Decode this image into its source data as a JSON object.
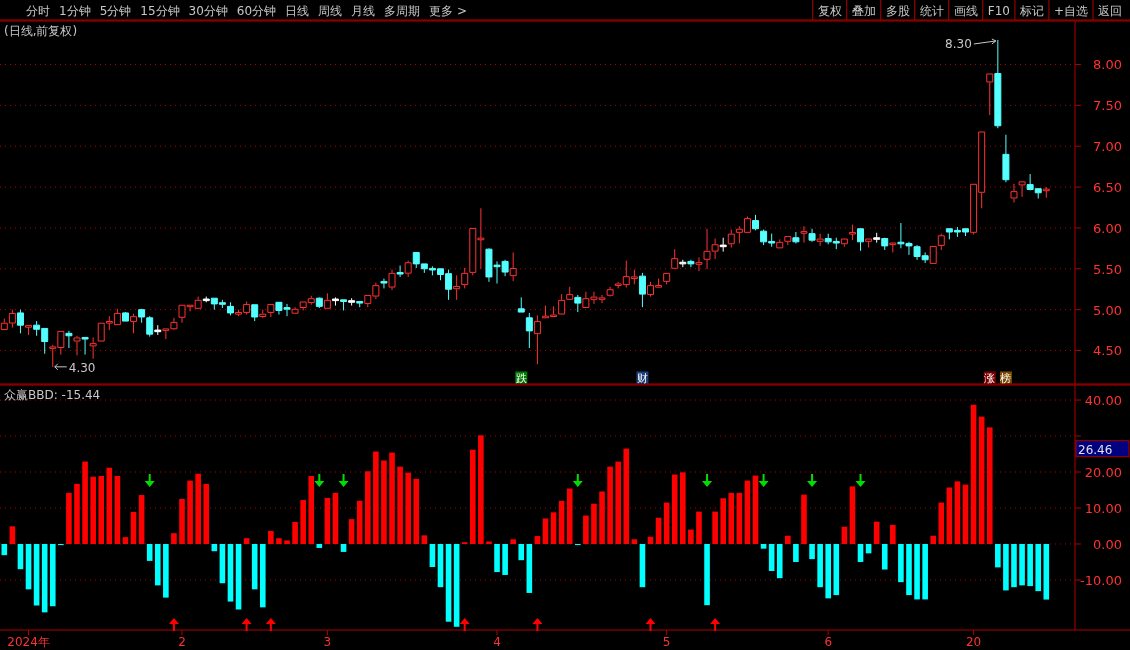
{
  "chart_data": [
    {
      "type": "other",
      "annotations": [
        "分时",
        "1分钟",
        "5分钟",
        "15分钟",
        "30分钟",
        "60分钟",
        "日线",
        "周线",
        "月线",
        "多周期",
        "更多 >",
        "复权",
        "叠加",
        "多股",
        "统计",
        "画线",
        "F10",
        "标记",
        "+自选",
        "返回"
      ]
    },
    {
      "type": "candlestick",
      "title": "(日线,前复权)",
      "tick_labels": "y",
      "grid": "y",
      "ylim": [
        4.09,
        8.52
      ],
      "yticks": [
        {
          "value": 4.5,
          "label": "4.50"
        },
        {
          "value": 5,
          "label": "5.00"
        },
        {
          "value": 5.5,
          "label": "5.50"
        },
        {
          "value": 6,
          "label": "6.00"
        },
        {
          "value": 6.5,
          "label": "6.50"
        },
        {
          "value": 7,
          "label": "7.00"
        },
        {
          "value": 7.5,
          "label": "7.50"
        },
        {
          "value": 8,
          "label": "8.00"
        }
      ],
      "categories": [
        null,
        null,
        null,
        null,
        null,
        null,
        null,
        null,
        null,
        null,
        null,
        null,
        null,
        null,
        null,
        null,
        null,
        null,
        null,
        null,
        null,
        null,
        null,
        null,
        null,
        null,
        null,
        null,
        null,
        null,
        null,
        null,
        null,
        null,
        null,
        null,
        null,
        null,
        null,
        null,
        null,
        null,
        null,
        null,
        null,
        null,
        null,
        null,
        null,
        null,
        null,
        null,
        null,
        null,
        null,
        null,
        null,
        null,
        null,
        null,
        null,
        null,
        null,
        null,
        null,
        null,
        null,
        null,
        null,
        null,
        null,
        null,
        null,
        null,
        null,
        null,
        null,
        null,
        null,
        null,
        null,
        null,
        null,
        null,
        null,
        null,
        null,
        null,
        null,
        null,
        null,
        null,
        null,
        null,
        null,
        null,
        null,
        null,
        null,
        null,
        null,
        null,
        null,
        null,
        null,
        null,
        null,
        null,
        null,
        null,
        null,
        null,
        null,
        null,
        null,
        null,
        null,
        null,
        null,
        null,
        null,
        null,
        null,
        null,
        null,
        null,
        null,
        null,
        null,
        null
      ],
      "ohlc": [
        [
          4.75,
          4.89,
          4.75,
          4.84
        ],
        [
          4.83,
          5.0,
          4.78,
          4.96
        ],
        [
          4.96,
          5.0,
          4.71,
          4.81
        ],
        [
          4.79,
          4.8,
          4.69,
          4.8
        ],
        [
          4.81,
          4.86,
          4.68,
          4.76
        ],
        [
          4.77,
          4.77,
          4.46,
          4.61
        ],
        [
          4.52,
          4.57,
          4.3,
          4.55
        ],
        [
          4.53,
          4.74,
          4.45,
          4.74
        ],
        [
          4.71,
          4.74,
          4.53,
          4.68
        ],
        [
          4.61,
          4.68,
          4.44,
          4.66
        ],
        [
          4.66,
          4.66,
          4.45,
          4.64
        ],
        [
          4.55,
          4.66,
          4.4,
          4.59
        ],
        [
          4.61,
          4.84,
          4.61,
          4.84
        ],
        [
          4.84,
          4.92,
          4.75,
          4.85
        ],
        [
          4.81,
          5.01,
          4.81,
          4.96
        ],
        [
          4.96,
          4.97,
          4.86,
          4.86
        ],
        [
          4.85,
          4.95,
          4.71,
          4.92
        ],
        [
          5.0,
          5.01,
          4.84,
          4.91
        ],
        [
          4.9,
          4.92,
          4.67,
          4.7
        ],
        [
          4.74,
          4.81,
          4.69,
          4.74
        ],
        [
          4.74,
          4.77,
          4.64,
          4.77
        ],
        [
          4.76,
          4.9,
          4.75,
          4.85
        ],
        [
          4.9,
          5.06,
          4.84,
          5.06
        ],
        [
          5.03,
          5.06,
          4.98,
          5.06
        ],
        [
          5.01,
          5.16,
          5.01,
          5.12
        ],
        [
          5.12,
          5.16,
          5.09,
          5.12
        ],
        [
          5.14,
          5.14,
          5.0,
          5.07
        ],
        [
          5.08,
          5.12,
          5.02,
          5.07
        ],
        [
          5.04,
          5.09,
          4.93,
          4.96
        ],
        [
          4.95,
          5.0,
          4.92,
          4.96
        ],
        [
          4.96,
          5.1,
          4.94,
          5.07
        ],
        [
          5.06,
          5.06,
          4.86,
          4.91
        ],
        [
          4.91,
          5.0,
          4.9,
          4.95
        ],
        [
          4.96,
          5.07,
          4.91,
          5.07
        ],
        [
          5.09,
          5.09,
          4.94,
          4.99
        ],
        [
          5.02,
          5.07,
          4.92,
          5.01
        ],
        [
          4.95,
          5.03,
          4.95,
          5.01
        ],
        [
          5.02,
          5.1,
          4.99,
          5.1
        ],
        [
          5.08,
          5.17,
          5.06,
          5.14
        ],
        [
          5.14,
          5.15,
          5.02,
          5.04
        ],
        [
          5.01,
          5.2,
          5.01,
          5.12
        ],
        [
          5.12,
          5.15,
          5.05,
          5.12
        ],
        [
          5.12,
          5.12,
          4.99,
          5.1
        ],
        [
          5.1,
          5.14,
          5.05,
          5.1
        ],
        [
          5.1,
          5.1,
          5.03,
          5.08
        ],
        [
          5.07,
          5.18,
          5.03,
          5.18
        ],
        [
          5.16,
          5.33,
          5.13,
          5.3
        ],
        [
          5.34,
          5.38,
          5.26,
          5.33
        ],
        [
          5.27,
          5.49,
          5.24,
          5.45
        ],
        [
          5.45,
          5.54,
          5.4,
          5.44
        ],
        [
          5.44,
          5.6,
          5.4,
          5.58
        ],
        [
          5.7,
          5.7,
          5.51,
          5.56
        ],
        [
          5.56,
          5.56,
          5.45,
          5.5
        ],
        [
          5.5,
          5.53,
          5.42,
          5.49
        ],
        [
          5.5,
          5.5,
          5.36,
          5.43
        ],
        [
          5.44,
          5.49,
          5.12,
          5.25
        ],
        [
          5.25,
          5.42,
          5.12,
          5.29
        ],
        [
          5.3,
          5.51,
          5.26,
          5.45
        ],
        [
          5.45,
          6.0,
          5.42,
          6.0
        ],
        [
          5.86,
          6.24,
          5.5,
          5.87
        ],
        [
          5.74,
          5.75,
          5.34,
          5.4
        ],
        [
          5.54,
          5.59,
          5.32,
          5.53
        ],
        [
          5.59,
          5.61,
          5.41,
          5.46
        ],
        [
          5.41,
          5.7,
          5.35,
          5.51
        ],
        [
          5.01,
          5.15,
          4.97,
          4.97
        ],
        [
          4.9,
          4.96,
          4.53,
          4.74
        ],
        [
          4.7,
          4.93,
          4.33,
          4.86
        ],
        [
          4.9,
          5.05,
          4.9,
          4.92
        ],
        [
          4.91,
          5.04,
          4.91,
          4.94
        ],
        [
          4.94,
          5.19,
          4.94,
          5.12
        ],
        [
          5.12,
          5.28,
          5.12,
          5.19
        ],
        [
          5.15,
          5.18,
          4.97,
          5.08
        ],
        [
          5.02,
          5.22,
          5.02,
          5.14
        ],
        [
          5.12,
          5.22,
          5.07,
          5.16
        ],
        [
          5.12,
          5.18,
          5.08,
          5.15
        ],
        [
          5.17,
          5.28,
          5.16,
          5.25
        ],
        [
          5.29,
          5.34,
          5.26,
          5.32
        ],
        [
          5.3,
          5.6,
          5.27,
          5.41
        ],
        [
          5.38,
          5.49,
          5.31,
          5.4
        ],
        [
          5.41,
          5.45,
          5.03,
          5.19
        ],
        [
          5.18,
          5.34,
          5.16,
          5.3
        ],
        [
          5.28,
          5.38,
          5.28,
          5.29
        ],
        [
          5.34,
          5.45,
          5.31,
          5.45
        ],
        [
          5.5,
          5.74,
          5.5,
          5.63
        ],
        [
          5.57,
          5.61,
          5.52,
          5.57
        ],
        [
          5.59,
          5.61,
          5.52,
          5.56
        ],
        [
          5.56,
          5.64,
          5.47,
          5.57
        ],
        [
          5.61,
          5.99,
          5.5,
          5.72
        ],
        [
          5.71,
          5.87,
          5.62,
          5.8
        ],
        [
          5.78,
          5.88,
          5.71,
          5.78
        ],
        [
          5.8,
          5.98,
          5.76,
          5.93
        ],
        [
          5.94,
          6.02,
          5.81,
          5.99
        ],
        [
          5.94,
          6.14,
          5.94,
          6.12
        ],
        [
          6.09,
          6.16,
          5.97,
          5.99
        ],
        [
          5.96,
          5.98,
          5.79,
          5.83
        ],
        [
          5.83,
          5.93,
          5.77,
          5.82
        ],
        [
          5.75,
          5.86,
          5.75,
          5.83
        ],
        [
          5.83,
          5.9,
          5.79,
          5.9
        ],
        [
          5.88,
          5.95,
          5.81,
          5.83
        ],
        [
          5.94,
          6.02,
          5.82,
          5.95
        ],
        [
          5.93,
          5.99,
          5.83,
          5.85
        ],
        [
          5.83,
          5.93,
          5.78,
          5.87
        ],
        [
          5.87,
          5.93,
          5.8,
          5.83
        ],
        [
          5.83,
          5.88,
          5.74,
          5.82
        ],
        [
          5.8,
          5.87,
          5.77,
          5.87
        ],
        [
          5.93,
          6.04,
          5.85,
          5.94
        ],
        [
          5.99,
          5.99,
          5.72,
          5.83
        ],
        [
          5.83,
          5.87,
          5.76,
          5.87
        ],
        [
          5.87,
          5.94,
          5.82,
          5.87
        ],
        [
          5.87,
          5.88,
          5.73,
          5.78
        ],
        [
          5.8,
          5.81,
          5.7,
          5.81
        ],
        [
          5.82,
          6.06,
          5.75,
          5.81
        ],
        [
          5.81,
          5.83,
          5.67,
          5.78
        ],
        [
          5.77,
          5.79,
          5.61,
          5.65
        ],
        [
          5.66,
          5.7,
          5.57,
          5.61
        ],
        [
          5.56,
          5.78,
          5.56,
          5.78
        ],
        [
          5.78,
          5.93,
          5.73,
          5.91
        ],
        [
          5.99,
          5.99,
          5.86,
          5.95
        ],
        [
          5.97,
          6.01,
          5.89,
          5.95
        ],
        [
          5.99,
          5.99,
          5.9,
          5.95
        ],
        [
          5.94,
          6.54,
          5.92,
          6.54
        ],
        [
          6.43,
          7.18,
          6.24,
          7.18
        ],
        [
          7.78,
          7.89,
          7.38,
          7.89
        ],
        [
          7.89,
          8.3,
          7.22,
          7.25
        ],
        [
          6.9,
          7.14,
          6.56,
          6.59
        ],
        [
          6.36,
          6.54,
          6.31,
          6.45
        ],
        [
          6.52,
          6.57,
          6.38,
          6.57
        ],
        [
          6.53,
          6.66,
          6.46,
          6.47
        ],
        [
          6.48,
          6.48,
          6.36,
          6.43
        ],
        [
          6.46,
          6.5,
          6.37,
          6.47
        ]
      ],
      "colors": [
        "#ff3232",
        "#ff3232",
        "#54ffff",
        "#ff3232",
        "#54ffff",
        "#54ffff",
        "#ff3232",
        "#ff3232",
        "#54ffff",
        "#ff3232",
        "#54ffff",
        "#ff3232",
        "#ff3232",
        "#ff3232",
        "#ff3232",
        "#54ffff",
        "#ff3232",
        "#54ffff",
        "#54ffff",
        "#ffffff",
        "#ff3232",
        "#ff3232",
        "#ff3232",
        "#ff3232",
        "#ff3232",
        "#ffffff",
        "#54ffff",
        "#54ffff",
        "#54ffff",
        "#ff3232",
        "#ff3232",
        "#54ffff",
        "#ff3232",
        "#ff3232",
        "#54ffff",
        "#54ffff",
        "#ff3232",
        "#ff3232",
        "#ff3232",
        "#54ffff",
        "#ff3232",
        "#ffffff",
        "#54ffff",
        "#ffffff",
        "#54ffff",
        "#ff3232",
        "#ff3232",
        "#54ffff",
        "#ff3232",
        "#54ffff",
        "#ff3232",
        "#54ffff",
        "#54ffff",
        "#54ffff",
        "#54ffff",
        "#54ffff",
        "#ff3232",
        "#ff3232",
        "#ff3232",
        "#ff3232",
        "#54ffff",
        "#54ffff",
        "#54ffff",
        "#ff3232",
        "#54ffff",
        "#54ffff",
        "#ff3232",
        "#ff3232",
        "#ff3232",
        "#ff3232",
        "#ff3232",
        "#54ffff",
        "#ff3232",
        "#ff3232",
        "#ff3232",
        "#ff3232",
        "#ff3232",
        "#ff3232",
        "#ff3232",
        "#54ffff",
        "#ff3232",
        "#ff3232",
        "#ff3232",
        "#ff3232",
        "#ffffff",
        "#54ffff",
        "#ff3232",
        "#ff3232",
        "#ff3232",
        "#ffffff",
        "#ff3232",
        "#ff3232",
        "#ff3232",
        "#54ffff",
        "#54ffff",
        "#54ffff",
        "#ff3232",
        "#ff3232",
        "#54ffff",
        "#ff3232",
        "#54ffff",
        "#ff3232",
        "#54ffff",
        "#54ffff",
        "#ff3232",
        "#ff3232",
        "#54ffff",
        "#ff3232",
        "#ffffff",
        "#54ffff",
        "#ff3232",
        "#54ffff",
        "#54ffff",
        "#54ffff",
        "#54ffff",
        "#ff3232",
        "#ff3232",
        "#54ffff",
        "#54ffff",
        "#54ffff",
        "#ff3232",
        "#ff3232",
        "#ff3232",
        "#54ffff",
        "#54ffff",
        "#ff3232",
        "#ff3232",
        "#54ffff",
        "#54ffff",
        "#ff3232"
      ],
      "series": [
        {
          "type": "scatter",
          "marker": "square",
          "values": [
            null,
            null,
            null,
            null,
            null,
            null,
            null,
            null,
            null,
            null,
            null,
            null,
            null,
            null,
            null,
            null,
            null,
            null,
            null,
            null,
            null,
            null,
            null,
            null,
            null,
            null,
            null,
            null,
            null,
            null,
            null,
            null,
            null,
            null,
            null,
            null,
            null,
            null,
            null,
            null,
            null,
            null,
            null,
            null,
            null,
            null,
            null,
            null,
            null,
            null,
            null,
            null,
            null,
            null,
            null,
            null,
            null,
            null,
            null,
            null,
            null,
            null,
            null,
            null,
            4.17,
            null,
            null,
            null,
            null,
            null,
            null,
            null,
            null,
            null,
            null,
            null,
            null,
            null,
            null,
            4.17,
            null,
            null,
            null,
            null,
            null,
            null,
            null,
            null,
            null,
            null,
            null,
            null,
            null,
            null,
            null,
            null,
            null,
            null,
            null,
            null,
            null,
            null,
            null,
            null,
            null,
            null,
            null,
            null,
            null,
            null,
            null,
            null,
            null,
            null,
            null,
            null,
            null,
            null,
            null,
            null,
            null,
            null,
            4.17,
            null,
            4.17,
            null,
            null,
            null,
            null,
            null
          ],
          "colors": [
            null,
            null,
            null,
            null,
            null,
            null,
            null,
            null,
            null,
            null,
            null,
            null,
            null,
            null,
            null,
            null,
            null,
            null,
            null,
            null,
            null,
            null,
            null,
            null,
            null,
            null,
            null,
            null,
            null,
            null,
            null,
            null,
            null,
            null,
            null,
            null,
            null,
            null,
            null,
            null,
            null,
            null,
            null,
            null,
            null,
            null,
            null,
            null,
            null,
            null,
            null,
            null,
            null,
            null,
            null,
            null,
            null,
            null,
            null,
            null,
            null,
            null,
            null,
            null,
            "#007a00",
            null,
            null,
            null,
            null,
            null,
            null,
            null,
            null,
            null,
            null,
            null,
            null,
            null,
            null,
            "#1c3f7a",
            null,
            null,
            null,
            null,
            null,
            null,
            null,
            null,
            null,
            null,
            null,
            null,
            null,
            null,
            null,
            null,
            null,
            null,
            null,
            null,
            null,
            null,
            null,
            null,
            null,
            null,
            null,
            null,
            null,
            null,
            null,
            null,
            null,
            null,
            null,
            null,
            null,
            null,
            null,
            null,
            null,
            null,
            "#7a0000",
            null,
            "#7a4a00",
            null,
            null,
            null,
            null,
            null
          ],
          "value_labels": [
            null,
            null,
            null,
            null,
            null,
            null,
            null,
            null,
            null,
            null,
            null,
            null,
            null,
            null,
            null,
            null,
            null,
            null,
            null,
            null,
            null,
            null,
            null,
            null,
            null,
            null,
            null,
            null,
            null,
            null,
            null,
            null,
            null,
            null,
            null,
            null,
            null,
            null,
            null,
            null,
            null,
            null,
            null,
            null,
            null,
            null,
            null,
            null,
            null,
            null,
            null,
            null,
            null,
            null,
            null,
            null,
            null,
            null,
            null,
            null,
            null,
            null,
            null,
            null,
            "跌",
            null,
            null,
            null,
            null,
            null,
            null,
            null,
            null,
            null,
            null,
            null,
            null,
            null,
            null,
            "财",
            null,
            null,
            null,
            null,
            null,
            null,
            null,
            null,
            null,
            null,
            null,
            null,
            null,
            null,
            null,
            null,
            null,
            null,
            null,
            null,
            null,
            null,
            null,
            null,
            null,
            null,
            null,
            null,
            null,
            null,
            null,
            null,
            null,
            null,
            null,
            null,
            null,
            null,
            null,
            null,
            null,
            null,
            "涨",
            null,
            "榜",
            null,
            null,
            null,
            null,
            null
          ]
        }
      ],
      "annotations": [
        "8.30",
        "4.30"
      ]
    },
    {
      "type": "bar",
      "title": "众赢BBD: -15.44",
      "grid": "y",
      "ylim": [
        -23.9,
        43.9
      ],
      "yticks": [
        {
          "value": -10,
          "label": "-10.00"
        },
        {
          "value": 0,
          "label": "0.00"
        },
        {
          "value": 10,
          "label": "10.00"
        },
        {
          "value": 20,
          "label": "20.00"
        },
        {
          "value": 30,
          "label": null
        },
        {
          "value": 40,
          "label": "40.00"
        }
      ],
      "categories": [
        null,
        null,
        null,
        "2024年",
        null,
        null,
        null,
        null,
        null,
        null,
        null,
        null,
        null,
        null,
        null,
        null,
        null,
        null,
        null,
        null,
        null,
        null,
        "2",
        null,
        null,
        null,
        null,
        null,
        null,
        null,
        null,
        null,
        null,
        null,
        null,
        null,
        null,
        null,
        null,
        null,
        "3",
        null,
        null,
        null,
        null,
        null,
        null,
        null,
        null,
        null,
        null,
        null,
        null,
        null,
        null,
        null,
        null,
        null,
        null,
        null,
        null,
        "4",
        null,
        null,
        null,
        null,
        null,
        null,
        null,
        null,
        null,
        null,
        null,
        null,
        null,
        null,
        null,
        null,
        null,
        null,
        null,
        null,
        "5",
        null,
        null,
        null,
        null,
        null,
        null,
        null,
        null,
        null,
        null,
        null,
        null,
        null,
        null,
        null,
        null,
        null,
        null,
        null,
        "6",
        null,
        null,
        null,
        null,
        null,
        null,
        null,
        null,
        null,
        null,
        null,
        null,
        null,
        null,
        null,
        null,
        null,
        "20",
        null,
        null,
        null,
        null,
        null,
        null,
        null,
        null,
        null
      ],
      "series": [
        {
          "type": "bar",
          "values": [
            -3.1,
            4.9,
            -7.0,
            -12.6,
            -17.1,
            -19.0,
            -17.3,
            -0.3,
            14.2,
            16.7,
            22.9,
            18.7,
            18.9,
            21.2,
            18.9,
            1.9,
            8.9,
            13.6,
            -4.7,
            -11.5,
            -14.9,
            3.0,
            12.5,
            17.6,
            19.5,
            16.7,
            -2.0,
            -10.9,
            -16.0,
            -18.2,
            1.6,
            -12.6,
            -17.6,
            3.6,
            1.6,
            1.0,
            6.1,
            12.2,
            18.9,
            -1.1,
            12.8,
            14.2,
            -2.2,
            6.9,
            12.0,
            20.2,
            25.7,
            23.2,
            25.4,
            21.5,
            19.8,
            18.1,
            2.4,
            -6.4,
            -12.0,
            -21.6,
            -23.0,
            0.5,
            26.2,
            30.2,
            0.7,
            -7.8,
            -8.6,
            1.3,
            -4.5,
            -13.6,
            2.2,
            7.1,
            8.8,
            12.0,
            15.4,
            -0.3,
            7.9,
            11.2,
            14.6,
            21.5,
            22.9,
            26.5,
            1.3,
            -12.0,
            2.0,
            7.3,
            11.5,
            19.3,
            19.9,
            4.0,
            9.0,
            -17.0,
            9.0,
            12.7,
            14.2,
            14.2,
            17.6,
            19.0,
            -1.3,
            -7.5,
            -9.5,
            2.3,
            -5.0,
            13.7,
            -4.2,
            -12.0,
            -15.1,
            -14.2,
            4.8,
            16.0,
            -5.0,
            -2.6,
            6.2,
            -7.1,
            5.3,
            -10.6,
            -14.2,
            -15.4,
            -15.4,
            2.3,
            11.5,
            15.7,
            17.4,
            16.5,
            38.7,
            35.4,
            32.4,
            -6.5,
            -12.9,
            -12.0,
            -11.5,
            -11.7,
            -13.1,
            -15.44
          ],
          "colors": [
            "#00ffff",
            "#ff0000",
            "#00ffff",
            "#00ffff",
            "#00ffff",
            "#00ffff",
            "#00ffff",
            "#00ffff",
            "#ff0000",
            "#ff0000",
            "#ff0000",
            "#ff0000",
            "#ff0000",
            "#ff0000",
            "#ff0000",
            "#ff0000",
            "#ff0000",
            "#ff0000",
            "#00ffff",
            "#00ffff",
            "#00ffff",
            "#ff0000",
            "#ff0000",
            "#ff0000",
            "#ff0000",
            "#ff0000",
            "#00ffff",
            "#00ffff",
            "#00ffff",
            "#00ffff",
            "#ff0000",
            "#00ffff",
            "#00ffff",
            "#ff0000",
            "#ff0000",
            "#ff0000",
            "#ff0000",
            "#ff0000",
            "#ff0000",
            "#00ffff",
            "#ff0000",
            "#ff0000",
            "#00ffff",
            "#ff0000",
            "#ff0000",
            "#ff0000",
            "#ff0000",
            "#ff0000",
            "#ff0000",
            "#ff0000",
            "#ff0000",
            "#ff0000",
            "#ff0000",
            "#00ffff",
            "#00ffff",
            "#00ffff",
            "#00ffff",
            "#ff0000",
            "#ff0000",
            "#ff0000",
            "#ff0000",
            "#00ffff",
            "#00ffff",
            "#ff0000",
            "#00ffff",
            "#00ffff",
            "#ff0000",
            "#ff0000",
            "#ff0000",
            "#ff0000",
            "#ff0000",
            "#00ffff",
            "#ff0000",
            "#ff0000",
            "#ff0000",
            "#ff0000",
            "#ff0000",
            "#ff0000",
            "#ff0000",
            "#00ffff",
            "#ff0000",
            "#ff0000",
            "#ff0000",
            "#ff0000",
            "#ff0000",
            "#ff0000",
            "#ff0000",
            "#00ffff",
            "#ff0000",
            "#ff0000",
            "#ff0000",
            "#ff0000",
            "#ff0000",
            "#ff0000",
            "#00ffff",
            "#00ffff",
            "#00ffff",
            "#ff0000",
            "#00ffff",
            "#ff0000",
            "#00ffff",
            "#00ffff",
            "#00ffff",
            "#00ffff",
            "#ff0000",
            "#ff0000",
            "#00ffff",
            "#00ffff",
            "#ff0000",
            "#00ffff",
            "#ff0000",
            "#00ffff",
            "#00ffff",
            "#00ffff",
            "#00ffff",
            "#ff0000",
            "#ff0000",
            "#ff0000",
            "#ff0000",
            "#ff0000",
            "#ff0000",
            "#ff0000",
            "#ff0000",
            "#00ffff",
            "#00ffff",
            "#00ffff",
            "#00ffff",
            "#00ffff",
            "#00ffff",
            "#00ffff"
          ]
        },
        {
          "type": "scatter",
          "marker": "triangle",
          "color": "#00dd00",
          "values": [
            null,
            null,
            null,
            null,
            null,
            null,
            null,
            null,
            null,
            null,
            null,
            null,
            null,
            null,
            null,
            null,
            null,
            null,
            17.5,
            null,
            null,
            null,
            null,
            null,
            null,
            null,
            null,
            null,
            null,
            null,
            null,
            null,
            null,
            null,
            null,
            null,
            null,
            null,
            null,
            17.5,
            null,
            null,
            17.5,
            null,
            null,
            null,
            null,
            null,
            null,
            null,
            null,
            null,
            null,
            null,
            null,
            null,
            null,
            null,
            null,
            null,
            null,
            null,
            null,
            null,
            null,
            null,
            null,
            null,
            null,
            null,
            null,
            17.5,
            null,
            null,
            null,
            null,
            null,
            null,
            null,
            null,
            null,
            null,
            null,
            null,
            null,
            null,
            null,
            17.5,
            null,
            null,
            null,
            null,
            null,
            null,
            17.5,
            null,
            null,
            null,
            null,
            null,
            17.5,
            null,
            null,
            null,
            null,
            null,
            17.5,
            null,
            null,
            null,
            null,
            null,
            null,
            null,
            null,
            null,
            null,
            null,
            null,
            null,
            null,
            null,
            null,
            null,
            null,
            null,
            null,
            null,
            null,
            null
          ]
        },
        {
          "type": "scatter",
          "marker": "triangle",
          "color": "#ff0000",
          "values": [
            null,
            null,
            null,
            null,
            null,
            null,
            null,
            null,
            null,
            null,
            null,
            null,
            null,
            null,
            null,
            null,
            null,
            null,
            null,
            null,
            null,
            -22.2,
            null,
            null,
            null,
            null,
            null,
            null,
            null,
            null,
            -22.2,
            null,
            null,
            -22.2,
            null,
            null,
            null,
            null,
            null,
            null,
            null,
            null,
            null,
            null,
            null,
            null,
            null,
            null,
            null,
            null,
            null,
            null,
            null,
            null,
            null,
            null,
            null,
            -22.2,
            null,
            null,
            null,
            null,
            null,
            null,
            null,
            null,
            -22.2,
            null,
            null,
            null,
            null,
            null,
            null,
            null,
            null,
            null,
            null,
            null,
            null,
            null,
            -22.2,
            null,
            null,
            null,
            null,
            null,
            null,
            null,
            -22.2,
            null,
            null,
            null,
            null,
            null,
            null,
            null,
            null,
            null,
            null,
            null,
            null,
            null,
            null,
            null,
            null,
            null,
            null,
            null,
            null,
            null,
            null,
            null,
            null,
            null,
            null,
            null,
            null,
            null,
            null,
            null,
            null,
            null,
            null,
            null,
            null,
            null,
            null,
            null,
            null,
            null
          ]
        }
      ],
      "annotations": [
        "26.46"
      ]
    }
  ]
}
